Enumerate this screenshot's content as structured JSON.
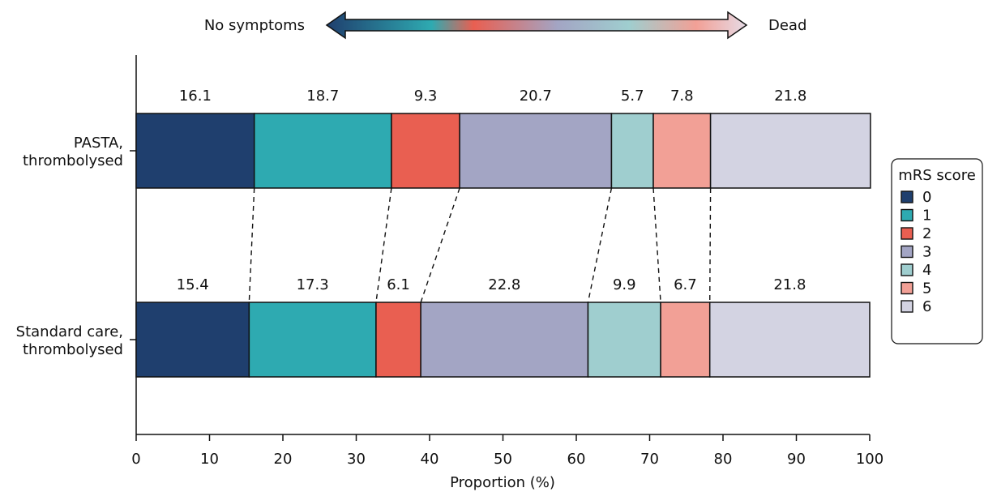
{
  "chart_data": {
    "type": "bar",
    "orientation": "horizontal",
    "stacked": true,
    "categories": [
      "PASTA,\nthrombolysed",
      "Standard care,\nthrombolysed"
    ],
    "category_lines": [
      [
        "PASTA,",
        "thrombolysed"
      ],
      [
        "Standard care,",
        "thrombolysed"
      ]
    ],
    "series": [
      {
        "name": "0",
        "color": "#1f3f6e",
        "values": [
          16.1,
          15.4
        ]
      },
      {
        "name": "1",
        "color": "#2eaab1",
        "values": [
          18.7,
          17.3
        ]
      },
      {
        "name": "2",
        "color": "#e95f51",
        "values": [
          9.3,
          6.1
        ]
      },
      {
        "name": "3",
        "color": "#a3a5c4",
        "values": [
          20.7,
          22.8
        ]
      },
      {
        "name": "4",
        "color": "#9fcecf",
        "values": [
          5.7,
          9.9
        ]
      },
      {
        "name": "5",
        "color": "#f2a096",
        "values": [
          7.8,
          6.7
        ]
      },
      {
        "name": "6",
        "color": "#d3d3e2",
        "values": [
          21.8,
          21.8
        ]
      }
    ],
    "xlabel": "Proportion (%)",
    "ylabel": "",
    "xlim": [
      0,
      100
    ],
    "xticks": [
      0,
      10,
      20,
      30,
      40,
      50,
      60,
      70,
      80,
      90,
      100
    ],
    "legend": {
      "title": "mRS score",
      "placement": "right"
    },
    "scale_arrow": {
      "left_label": "No symptoms",
      "right_label": "Dead"
    },
    "connectors": "dashed lines joining matching segment boundaries between the two bars"
  }
}
